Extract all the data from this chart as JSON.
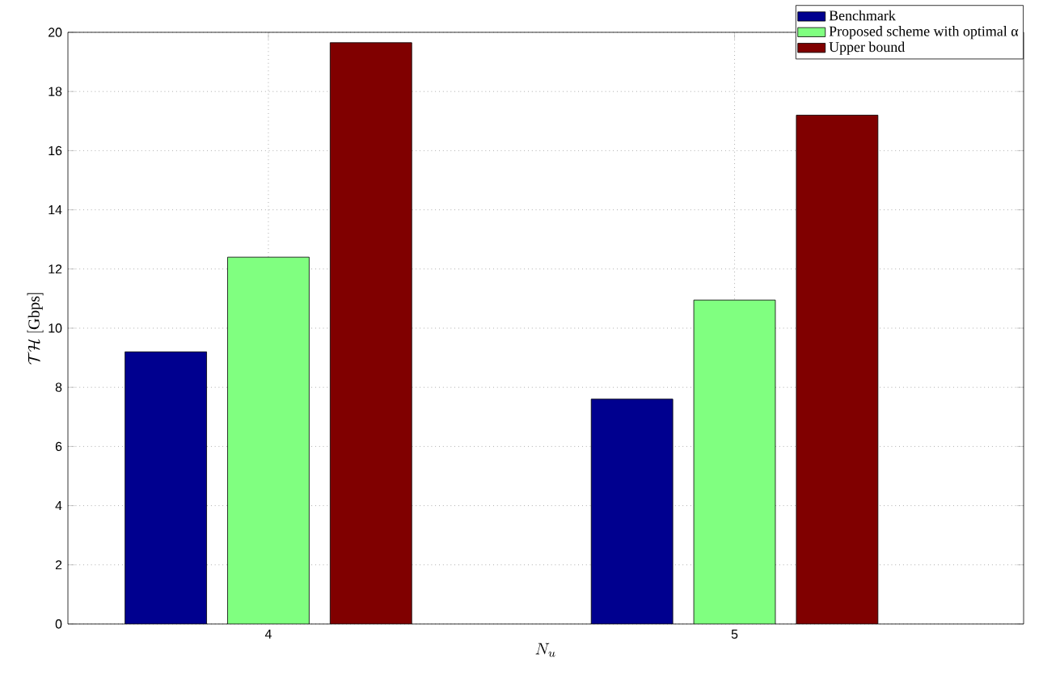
{
  "chart_data": {
    "type": "bar",
    "xlabel": "N_u",
    "ylabel": "\\mathcal{TH}\\ [\\mathrm{Gbps}]",
    "categories": [
      "4",
      "5"
    ],
    "series": [
      {
        "name": "Benchmark",
        "color": "#00008f",
        "values": [
          9.2,
          7.6
        ]
      },
      {
        "name": "Proposed scheme with optimal α",
        "color": "#80ff80",
        "values": [
          12.4,
          10.95
        ]
      },
      {
        "name": "Upper bound",
        "color": "#800000",
        "values": [
          19.65,
          17.2
        ]
      }
    ],
    "ylim": [
      0,
      20
    ],
    "yticks": [
      0,
      2,
      4,
      6,
      8,
      10,
      12,
      14,
      16,
      18,
      20
    ],
    "grid": true,
    "legend": "top right"
  }
}
